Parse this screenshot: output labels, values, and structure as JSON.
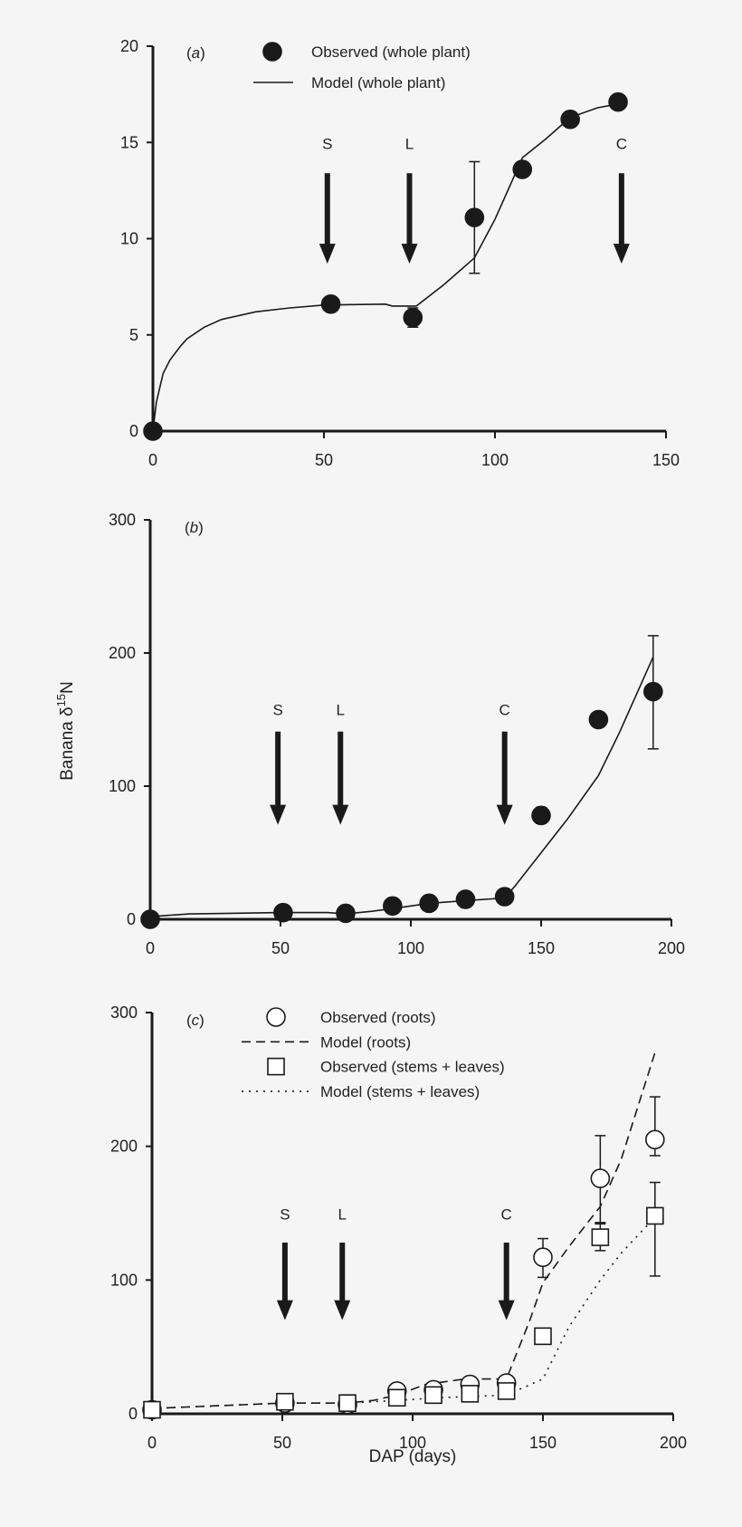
{
  "ylabel": "Banana δ15N",
  "ylabel_base": "Banana δ",
  "ylabel_sup": "15",
  "ylabel_tail": "N",
  "xlabel": "DAP (days)",
  "colors": {
    "background": "#f5f5f5",
    "ink": "#1a1a1a"
  },
  "chart_data": [
    {
      "type": "line",
      "panel_label": "a",
      "xlim": [
        0,
        150
      ],
      "ylim": [
        0,
        20
      ],
      "xticks": [
        0,
        50,
        100,
        150
      ],
      "yticks": [
        0,
        5,
        10,
        15,
        20
      ],
      "grid": false,
      "legend": "top-center",
      "events": [
        {
          "label": "S",
          "x": 51
        },
        {
          "label": "L",
          "x": 75
        },
        {
          "label": "C",
          "x": 137
        }
      ],
      "series": [
        {
          "name": "Observed (whole plant)",
          "kind": "points",
          "marker": "filled-circle",
          "points": [
            {
              "x": 0,
              "y": 0
            },
            {
              "x": 52,
              "y": 6.6
            },
            {
              "x": 76,
              "y": 5.9,
              "lo": 5.4,
              "hi": 6.4
            },
            {
              "x": 94,
              "y": 11.1,
              "lo": 8.2,
              "hi": 14.0
            },
            {
              "x": 108,
              "y": 13.6
            },
            {
              "x": 122,
              "y": 16.2
            },
            {
              "x": 136,
              "y": 17.1
            }
          ]
        },
        {
          "name": "Model (whole plant)",
          "kind": "line",
          "dash": "solid",
          "points": [
            [
              0,
              0
            ],
            [
              1,
              1.5
            ],
            [
              3,
              3
            ],
            [
              5,
              3.7
            ],
            [
              8,
              4.4
            ],
            [
              10,
              4.8
            ],
            [
              15,
              5.4
            ],
            [
              20,
              5.8
            ],
            [
              30,
              6.2
            ],
            [
              40,
              6.4
            ],
            [
              50,
              6.55
            ],
            [
              68,
              6.6
            ],
            [
              70,
              6.5
            ],
            [
              77,
              6.5
            ],
            [
              85,
              7.6
            ],
            [
              94,
              9.0
            ],
            [
              100,
              11
            ],
            [
              105,
              13
            ],
            [
              108,
              14.2
            ],
            [
              115,
              15.2
            ],
            [
              122,
              16.3
            ],
            [
              130,
              16.8
            ],
            [
              136,
              17.0
            ]
          ]
        }
      ]
    },
    {
      "type": "line",
      "panel_label": "b",
      "xlim": [
        0,
        200
      ],
      "ylim": [
        0,
        300
      ],
      "xticks": [
        0,
        50,
        100,
        150,
        200
      ],
      "yticks": [
        0,
        100,
        200,
        300
      ],
      "grid": false,
      "legend": "none",
      "events": [
        {
          "label": "S",
          "x": 49
        },
        {
          "label": "L",
          "x": 73
        },
        {
          "label": "C",
          "x": 136
        }
      ],
      "series": [
        {
          "name": "",
          "kind": "points",
          "marker": "filled-circle",
          "points": [
            {
              "x": 0,
              "y": 0
            },
            {
              "x": 51,
              "y": 5
            },
            {
              "x": 75,
              "y": 4.5
            },
            {
              "x": 93,
              "y": 10
            },
            {
              "x": 107,
              "y": 12
            },
            {
              "x": 121,
              "y": 15
            },
            {
              "x": 136,
              "y": 17
            },
            {
              "x": 150,
              "y": 78,
              "lo": 72,
              "hi": 84
            },
            {
              "x": 172,
              "y": 150,
              "lo": 145,
              "hi": 155
            },
            {
              "x": 193,
              "y": 171,
              "lo": 128,
              "hi": 213
            }
          ]
        },
        {
          "name": "",
          "kind": "line",
          "dash": "solid",
          "points": [
            [
              0,
              2
            ],
            [
              15,
              4
            ],
            [
              50,
              5
            ],
            [
              68,
              5
            ],
            [
              75,
              4
            ],
            [
              85,
              6
            ],
            [
              93,
              8
            ],
            [
              107,
              12
            ],
            [
              121,
              14
            ],
            [
              136,
              16
            ],
            [
              140,
              25
            ],
            [
              150,
              50
            ],
            [
              160,
              75
            ],
            [
              172,
              108
            ],
            [
              180,
              140
            ],
            [
              193,
              197
            ]
          ]
        }
      ]
    },
    {
      "type": "line",
      "panel_label": "c",
      "xlim": [
        0,
        200
      ],
      "ylim": [
        0,
        300
      ],
      "xticks": [
        0,
        50,
        100,
        150,
        200
      ],
      "yticks": [
        0,
        100,
        200,
        300
      ],
      "grid": false,
      "legend": "top-center",
      "events": [
        {
          "label": "S",
          "x": 51
        },
        {
          "label": "L",
          "x": 73
        },
        {
          "label": "C",
          "x": 136
        }
      ],
      "series": [
        {
          "name": "Observed (roots)",
          "kind": "points",
          "marker": "open-circle",
          "points": [
            {
              "x": 0,
              "y": 3
            },
            {
              "x": 51,
              "y": 8
            },
            {
              "x": 75,
              "y": 7
            },
            {
              "x": 94,
              "y": 17
            },
            {
              "x": 108,
              "y": 18
            },
            {
              "x": 122,
              "y": 22
            },
            {
              "x": 136,
              "y": 23
            },
            {
              "x": 150,
              "y": 117,
              "lo": 102,
              "hi": 131
            },
            {
              "x": 172,
              "y": 176,
              "lo": 143,
              "hi": 208
            },
            {
              "x": 193,
              "y": 205,
              "lo": 193,
              "hi": 237
            }
          ]
        },
        {
          "name": "Model (roots)",
          "kind": "line",
          "dash": "dashed",
          "points": [
            [
              0,
              4
            ],
            [
              50,
              8
            ],
            [
              75,
              8
            ],
            [
              85,
              10
            ],
            [
              94,
              14
            ],
            [
              105,
              22
            ],
            [
              120,
              26
            ],
            [
              136,
              26
            ],
            [
              145,
              70
            ],
            [
              150,
              98
            ],
            [
              160,
              125
            ],
            [
              172,
              155
            ],
            [
              180,
              190
            ],
            [
              193,
              270
            ]
          ]
        },
        {
          "name": "Observed (stems + leaves)",
          "kind": "points",
          "marker": "open-square",
          "points": [
            {
              "x": 0,
              "y": 3
            },
            {
              "x": 51,
              "y": 9
            },
            {
              "x": 75,
              "y": 8
            },
            {
              "x": 94,
              "y": 12
            },
            {
              "x": 108,
              "y": 14
            },
            {
              "x": 122,
              "y": 15
            },
            {
              "x": 136,
              "y": 17
            },
            {
              "x": 150,
              "y": 58
            },
            {
              "x": 172,
              "y": 132,
              "lo": 122,
              "hi": 142
            },
            {
              "x": 193,
              "y": 148,
              "lo": 103,
              "hi": 173
            }
          ]
        },
        {
          "name": "Model (stems + leaves)",
          "kind": "line",
          "dash": "dotted",
          "points": [
            [
              0,
              4
            ],
            [
              50,
              8
            ],
            [
              75,
              8
            ],
            [
              94,
              10
            ],
            [
              110,
              12
            ],
            [
              136,
              14
            ],
            [
              150,
              26
            ],
            [
              160,
              65
            ],
            [
              172,
              100
            ],
            [
              180,
              120
            ],
            [
              193,
              147
            ]
          ]
        }
      ]
    }
  ]
}
